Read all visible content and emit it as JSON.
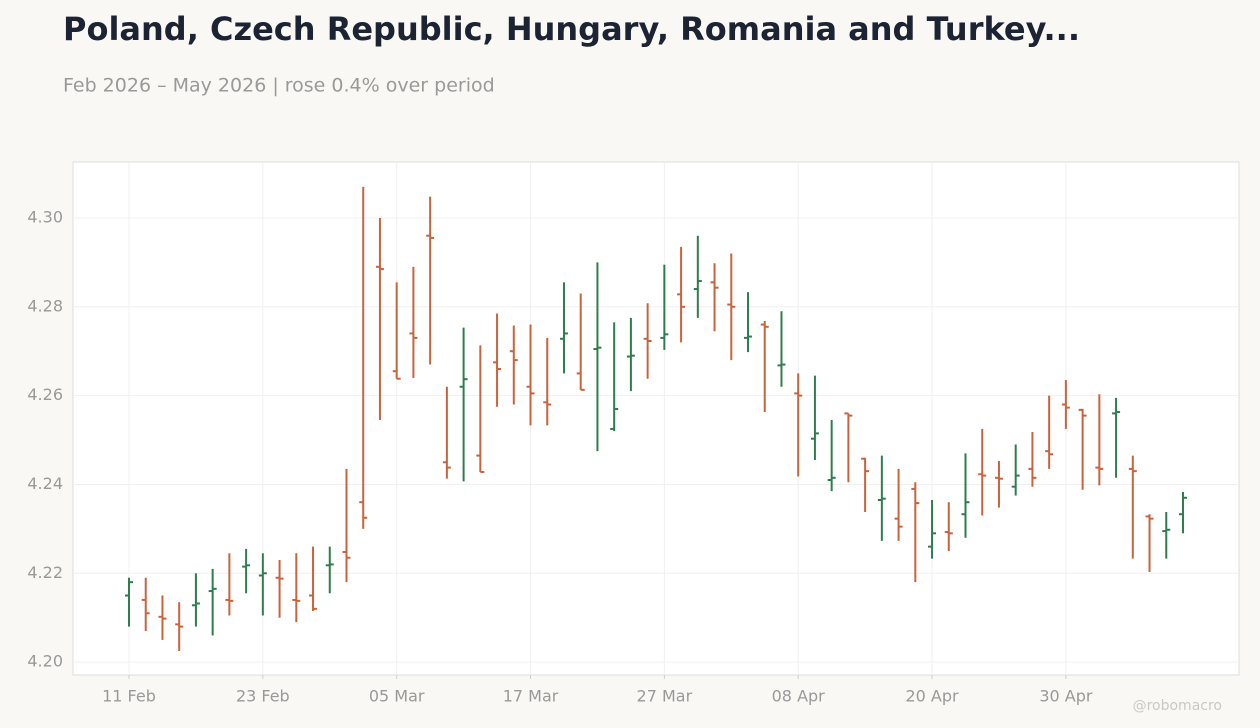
{
  "chart_data": {
    "type": "ohlc",
    "title": "Poland, Czech Republic, Hungary, Romania and Turkey...",
    "subtitle": "Feb 2026 – May 2026 | rose 0.4% over period",
    "watermark": "@robomacro",
    "categories": [
      "11 Feb",
      null,
      null,
      null,
      null,
      null,
      null,
      null,
      "23 Feb",
      null,
      null,
      null,
      null,
      null,
      null,
      null,
      "05 Mar",
      null,
      null,
      null,
      null,
      null,
      null,
      null,
      "17 Mar",
      null,
      null,
      null,
      null,
      null,
      null,
      null,
      "27 Mar",
      null,
      null,
      null,
      null,
      null,
      null,
      null,
      "08 Apr",
      null,
      null,
      null,
      null,
      null,
      null,
      null,
      "20 Apr",
      null,
      null,
      null,
      null,
      null,
      null,
      null,
      "30 Apr",
      null,
      null,
      null,
      null,
      null,
      null,
      null
    ],
    "open": [
      4.215,
      4.214,
      4.2102,
      4.2085,
      4.2128,
      4.216,
      4.214,
      4.2215,
      4.2195,
      4.219,
      4.214,
      4.215,
      4.2218,
      4.2248,
      4.236,
      4.289,
      4.2655,
      4.274,
      4.296,
      4.245,
      4.262,
      4.2465,
      4.2675,
      4.27,
      4.262,
      4.2585,
      4.2728,
      4.265,
      4.2705,
      4.2525,
      4.2688,
      4.2728,
      4.273,
      4.2828,
      4.284,
      4.2855,
      4.2805,
      4.273,
      4.276,
      4.2668,
      4.2605,
      4.2503,
      4.241,
      4.256,
      4.2458,
      4.2365,
      4.2323,
      4.239,
      4.226,
      4.2293,
      4.2333,
      4.2423,
      4.2415,
      4.2395,
      4.2435,
      4.2475,
      4.258,
      4.2568,
      4.2438,
      4.256,
      4.2435,
      4.2328,
      4.2295,
      4.2333
    ],
    "high": [
      4.219,
      4.219,
      4.215,
      4.2135,
      4.22,
      4.221,
      4.2245,
      4.2255,
      4.2245,
      4.223,
      4.2245,
      4.226,
      4.226,
      4.2435,
      4.307,
      4.3,
      4.2855,
      4.289,
      4.3048,
      4.262,
      4.2753,
      4.2713,
      4.2785,
      4.2758,
      4.276,
      4.273,
      4.2855,
      4.283,
      4.29,
      4.2765,
      4.2775,
      4.2808,
      4.2895,
      4.2935,
      4.296,
      4.2898,
      4.292,
      4.2833,
      4.2768,
      4.279,
      4.265,
      4.2645,
      4.2545,
      4.256,
      4.246,
      4.2465,
      4.2435,
      4.2405,
      4.2365,
      4.236,
      4.247,
      4.2525,
      4.2453,
      4.249,
      4.2518,
      4.26,
      4.2635,
      4.257,
      4.2603,
      4.2595,
      4.2465,
      4.2333,
      4.2338,
      4.2383
    ],
    "low": [
      4.208,
      4.207,
      4.205,
      4.2025,
      4.208,
      4.206,
      4.2105,
      4.2155,
      4.2105,
      4.21,
      4.209,
      4.2115,
      4.2155,
      4.218,
      4.23,
      4.2545,
      4.2638,
      4.264,
      4.267,
      4.2413,
      4.2407,
      4.2428,
      4.2575,
      4.258,
      4.2533,
      4.2533,
      4.265,
      4.2613,
      4.2475,
      4.252,
      4.261,
      4.2638,
      4.2703,
      4.272,
      4.2775,
      4.2745,
      4.268,
      4.2698,
      4.2563,
      4.262,
      4.2418,
      4.2455,
      4.2385,
      4.2405,
      4.2338,
      4.2273,
      4.2273,
      4.218,
      4.2233,
      4.225,
      4.228,
      4.233,
      4.2348,
      4.2375,
      4.2395,
      4.2435,
      4.2525,
      4.2388,
      4.2398,
      4.2415,
      4.2233,
      4.2203,
      4.2233,
      4.229
    ],
    "close": [
      4.218,
      4.211,
      4.2098,
      4.208,
      4.2132,
      4.2165,
      4.2138,
      4.2218,
      4.22,
      4.2188,
      4.2138,
      4.212,
      4.222,
      4.2235,
      4.2325,
      4.2885,
      4.2638,
      4.273,
      4.2955,
      4.2438,
      4.2637,
      4.2428,
      4.266,
      4.268,
      4.2605,
      4.258,
      4.274,
      4.2613,
      4.2708,
      4.257,
      4.269,
      4.2723,
      4.2738,
      4.28,
      4.2858,
      4.2843,
      4.28,
      4.2733,
      4.2755,
      4.267,
      4.26,
      4.2515,
      4.2415,
      4.2555,
      4.243,
      4.2368,
      4.2305,
      4.2358,
      4.229,
      4.229,
      4.236,
      4.242,
      4.2413,
      4.242,
      4.2415,
      4.2468,
      4.2573,
      4.2555,
      4.2435,
      4.2563,
      4.243,
      4.2323,
      4.2298,
      4.237
    ],
    "colors": {
      "up": "#2e7d4f",
      "down": "#c8643c"
    },
    "ylim": [
      4.1971,
      4.3126
    ],
    "yticks": [
      {
        "value": 4.2,
        "label": "4.20"
      },
      4.22,
      4.24,
      4.26,
      4.28,
      {
        "value": 4.3,
        "label": "4.30"
      }
    ],
    "grid": true
  }
}
